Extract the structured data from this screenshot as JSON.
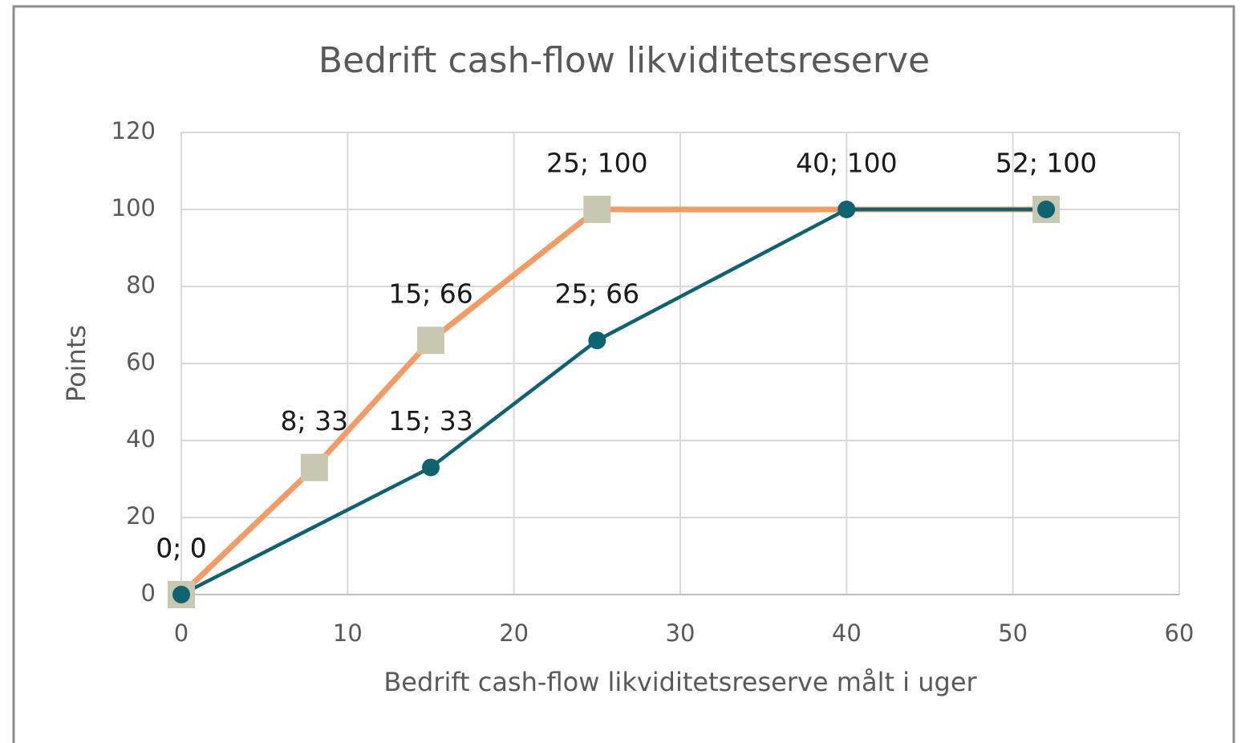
{
  "chart_data": {
    "type": "line",
    "title": "Bedrift cash-flow likviditetsreserve",
    "x_label": "Bedrift cash-flow likviditetsreserve målt i uger",
    "y_label": "Points",
    "xlim": [
      0,
      60
    ],
    "xticks": [
      0,
      10,
      20,
      30,
      40,
      50,
      60
    ],
    "ylim": [
      0,
      120
    ],
    "yticks": [
      0,
      20,
      40,
      60,
      80,
      100,
      120
    ],
    "grid": true,
    "series": [
      {
        "color": "#f59a62",
        "marker": "square",
        "marker_color": "#c8c7b0",
        "x": [
          0,
          8,
          15,
          25,
          52
        ],
        "values": [
          0,
          33,
          66,
          100,
          100
        ],
        "value_labels": [
          "0; 0",
          "8; 33",
          "15; 66",
          "25; 100",
          "52; 100"
        ]
      },
      {
        "color": "#0d6470",
        "marker": "circle",
        "marker_color": "#0d6470",
        "x": [
          0,
          15,
          25,
          40,
          52
        ],
        "values": [
          0,
          33,
          66,
          100,
          100
        ],
        "value_labels": [
          "0; 0",
          "15; 33",
          "25; 66",
          "40; 100",
          "52; 100"
        ]
      }
    ]
  }
}
